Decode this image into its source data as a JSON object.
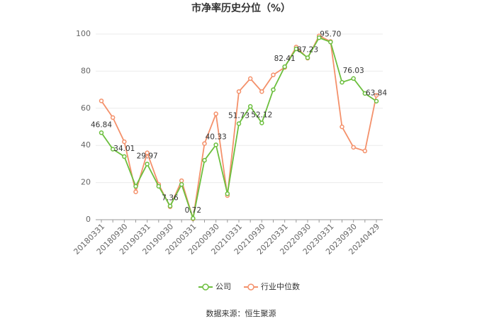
{
  "chart_data": {
    "type": "line",
    "title": "市净率历史分位（%）",
    "categories": [
      "20180331",
      null,
      "20180930",
      null,
      "20190331",
      null,
      "20190930",
      null,
      "20200331",
      null,
      "20200930",
      null,
      "20210331",
      null,
      "20210930",
      null,
      "20220331",
      null,
      "20220930",
      null,
      "20230331",
      null,
      "20230930",
      null,
      "20240429"
    ],
    "series": [
      {
        "name": "公司",
        "color": "#6cbf3e",
        "values": [
          46.84,
          38,
          34.01,
          18,
          29.97,
          18,
          7.36,
          19,
          0.72,
          32,
          40.33,
          14,
          51.73,
          61,
          52.12,
          70,
          82.41,
          92,
          87.23,
          98,
          95.7,
          74,
          76.03,
          68,
          63.84
        ],
        "value_labels": [
          "46.84",
          null,
          "34.01",
          null,
          "29.97",
          null,
          "7.36",
          null,
          "0.72",
          null,
          "40.33",
          null,
          "51.73",
          null,
          "52.12",
          null,
          "82.41",
          null,
          "87.23",
          null,
          "95.70",
          null,
          "76.03",
          null,
          "63.84"
        ]
      },
      {
        "name": "行业中位数",
        "color": "#f4916b",
        "values": [
          64,
          55,
          42,
          15,
          36,
          19,
          7,
          21,
          0.5,
          41,
          57,
          13,
          69,
          76,
          69,
          78,
          82,
          93,
          87,
          99,
          96,
          50,
          39,
          37,
          67
        ]
      }
    ],
    "ylim": [
      0,
      100
    ],
    "yticks": [
      0,
      20,
      40,
      60,
      80,
      100
    ],
    "grid": true,
    "legend": "bottom",
    "source": "数据来源：恒生聚源"
  }
}
